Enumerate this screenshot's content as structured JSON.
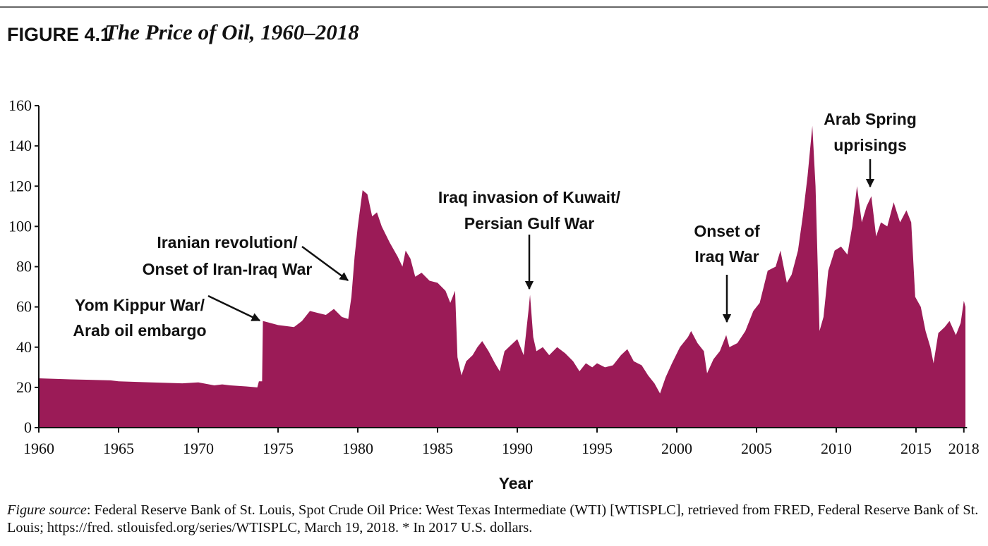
{
  "chart_data": {
    "type": "area",
    "figure_label": "FIGURE 4.1",
    "title": "The Price of Oil, 1960–2018",
    "xlabel": "Year",
    "color": "#9b1b57",
    "xlim": [
      1960,
      2018.2
    ],
    "ylim": [
      0,
      160
    ],
    "xticks": [
      1960,
      1965,
      1970,
      1975,
      1980,
      1985,
      1990,
      1995,
      2000,
      2005,
      2010,
      2015,
      2018
    ],
    "yticks": [
      0,
      20,
      40,
      60,
      80,
      100,
      120,
      140,
      160
    ],
    "annotations": [
      [
        "Yom Kippur War/",
        "Arab oil embargo"
      ],
      [
        "Iranian revolution/",
        "Onset of Iran-Iraq War"
      ],
      [
        "Iraq invasion of Kuwait/",
        "Persian Gulf War"
      ],
      [
        "Onset of",
        "Iraq War"
      ],
      [
        "Arab Spring",
        "uprisings"
      ]
    ],
    "source_label": "Figure source",
    "source_text": ": Federal Reserve Bank of St. Louis, Spot Crude Oil Price: West Texas Intermediate (WTI) [WTISPLC], retrieved from FRED, Federal Reserve Bank of St. Louis; https://fred. stlouisfed.org/series/WTISPLC, March 19, 2018. * In 2017 U.S. dollars.",
    "x": [
      1960,
      1962,
      1964.5,
      1965,
      1967,
      1969,
      1970,
      1971,
      1971.5,
      1972,
      1973,
      1973.7,
      1973.8,
      1974,
      1974.05,
      1975,
      1976,
      1976.5,
      1977,
      1977.5,
      1978,
      1978.5,
      1979,
      1979.4,
      1979.6,
      1979.8,
      1980,
      1980.3,
      1980.6,
      1980.9,
      1981.2,
      1981.5,
      1982,
      1982.5,
      1982.8,
      1983,
      1983.3,
      1983.6,
      1984,
      1984.5,
      1985,
      1985.5,
      1985.8,
      1986,
      1986.1,
      1986.25,
      1986.5,
      1986.8,
      1987.2,
      1987.5,
      1987.8,
      1988.2,
      1988.6,
      1988.9,
      1989.2,
      1989.6,
      1990,
      1990.4,
      1990.7,
      1990.8,
      1991,
      1991.2,
      1991.6,
      1992,
      1992.5,
      1993,
      1993.5,
      1993.9,
      1994.3,
      1994.7,
      1995,
      1995.5,
      1996,
      1996.5,
      1996.9,
      1997.3,
      1997.8,
      1998.2,
      1998.6,
      1998.95,
      1999.3,
      1999.7,
      2000.2,
      2000.7,
      2000.9,
      2001.3,
      2001.7,
      2001.9,
      2002.3,
      2002.7,
      2003.1,
      2003.3,
      2003.8,
      2004.3,
      2004.8,
      2005.2,
      2005.7,
      2006.2,
      2006.5,
      2006.9,
      2007.2,
      2007.6,
      2007.9,
      2008.2,
      2008.5,
      2008.7,
      2008.95,
      2009.2,
      2009.5,
      2009.9,
      2010.3,
      2010.7,
      2011,
      2011.3,
      2011.6,
      2011.9,
      2012.2,
      2012.5,
      2012.8,
      2013.2,
      2013.6,
      2014,
      2014.4,
      2014.7,
      2014.95,
      2015.3,
      2015.6,
      2015.9,
      2016.1,
      2016.4,
      2016.8,
      2017.1,
      2017.5,
      2017.8,
      2018,
      2018.1
    ],
    "values": [
      24.5,
      24,
      23.5,
      23,
      22.5,
      22,
      22.5,
      21,
      21.5,
      21,
      20.5,
      20,
      23,
      23,
      53,
      51,
      50,
      53,
      58,
      57,
      56,
      59,
      55,
      54,
      65,
      85,
      100,
      118,
      116,
      105,
      107,
      100,
      92,
      85,
      80,
      88,
      84,
      75,
      77,
      73,
      72,
      68,
      62,
      66,
      68,
      35,
      26,
      33,
      36,
      40,
      43,
      38,
      32,
      28,
      38,
      41,
      44,
      36,
      58,
      66,
      45,
      38,
      40,
      36,
      40,
      37,
      33,
      28,
      32,
      30,
      32,
      30,
      31,
      36,
      39,
      33,
      31,
      26,
      22,
      17,
      25,
      32,
      40,
      45,
      48,
      42,
      38,
      27,
      34,
      38,
      46,
      40,
      42,
      48,
      58,
      62,
      78,
      80,
      88,
      72,
      76,
      88,
      105,
      125,
      150,
      120,
      48,
      55,
      78,
      88,
      90,
      86,
      100,
      120,
      102,
      110,
      115,
      95,
      102,
      100,
      112,
      102,
      108,
      102,
      65,
      60,
      48,
      40,
      32,
      47,
      50,
      53,
      46,
      52,
      63,
      60
    ]
  }
}
